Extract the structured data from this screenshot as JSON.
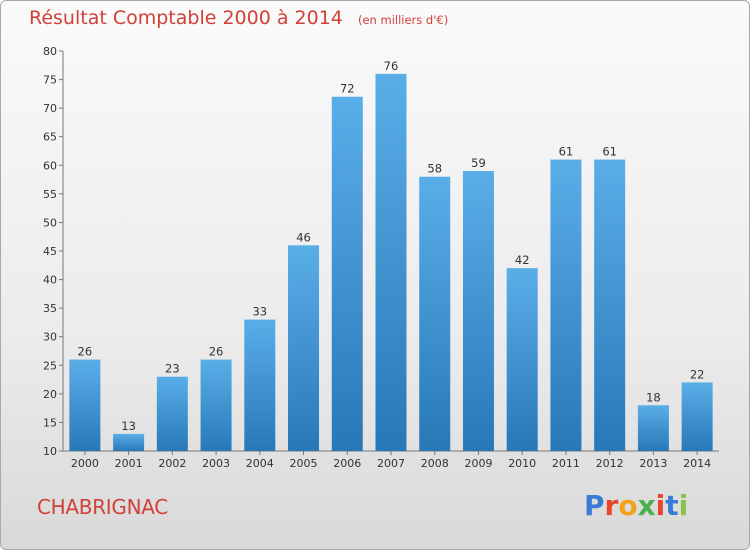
{
  "header": {
    "title": "Résultat Comptable 2000 à 2014",
    "unit": "(en milliers d'€)"
  },
  "footer": {
    "place": "CHABRIGNAC",
    "logo_text": "Proxiti",
    "logo_letter_colors": [
      "#3a7bd5",
      "#e8452c",
      "#f4a21a",
      "#4caf50",
      "#e8452c",
      "#3a7bd5",
      "#8bc34a"
    ]
  },
  "colors": {
    "bar_top": "#5aaee8",
    "bar_bottom": "#2878b8",
    "accent": "#d2403a"
  },
  "chart_data": {
    "type": "bar",
    "title": "Résultat Comptable 2000 à 2014",
    "subtitle": "(en milliers d'€)",
    "categories": [
      "2000",
      "2001",
      "2002",
      "2003",
      "2004",
      "2005",
      "2006",
      "2007",
      "2008",
      "2009",
      "2010",
      "2011",
      "2012",
      "2013",
      "2014"
    ],
    "values": [
      26,
      13,
      23,
      26,
      33,
      46,
      72,
      76,
      58,
      59,
      42,
      61,
      61,
      18,
      22
    ],
    "ylim": [
      10,
      80
    ],
    "yticks": [
      10,
      15,
      20,
      25,
      30,
      35,
      40,
      45,
      50,
      55,
      60,
      65,
      70,
      75,
      80
    ],
    "grid": false,
    "data_labels": true
  }
}
